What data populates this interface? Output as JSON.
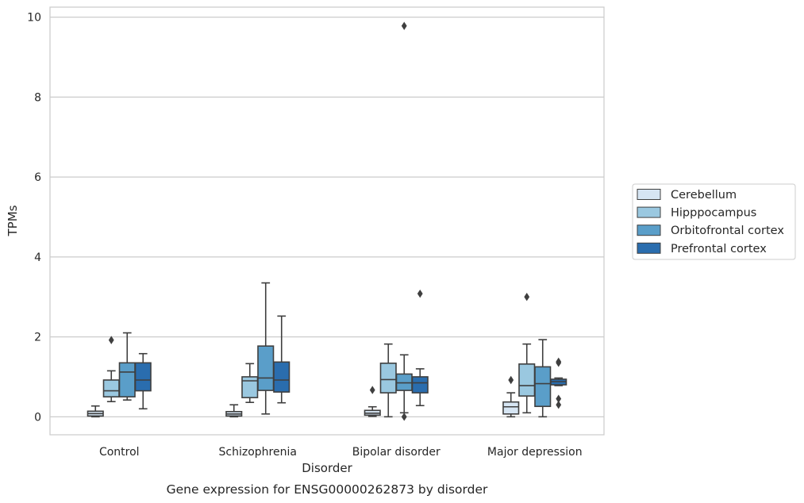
{
  "chart_data": {
    "type": "box",
    "ylabel": "TPMs",
    "xlabel": "Disorder",
    "caption": "Gene expression for ENSG00000262873 by disorder",
    "ylim": [
      -0.45,
      10.25
    ],
    "yticks": [
      0,
      2,
      4,
      6,
      8,
      10
    ],
    "grid": true,
    "legend_position": "right",
    "categories": [
      "Control",
      "Schizophrenia",
      "Bipolar disorder",
      "Major depression"
    ],
    "series": [
      {
        "name": "Cerebellum",
        "color": "#d6e5f3",
        "boxes": [
          {
            "whislo": 0.0,
            "q1": 0.02,
            "med": 0.08,
            "q3": 0.14,
            "whishi": 0.27,
            "fliers": []
          },
          {
            "whislo": 0.0,
            "q1": 0.02,
            "med": 0.07,
            "q3": 0.13,
            "whishi": 0.3,
            "fliers": []
          },
          {
            "whislo": 0.01,
            "q1": 0.04,
            "med": 0.09,
            "q3": 0.16,
            "whishi": 0.25,
            "fliers": [
              0.67
            ]
          },
          {
            "whislo": 0.0,
            "q1": 0.07,
            "med": 0.25,
            "q3": 0.37,
            "whishi": 0.6,
            "fliers": [
              0.92
            ]
          }
        ]
      },
      {
        "name": "Hipppocampus",
        "color": "#9ac8e0",
        "boxes": [
          {
            "whislo": 0.38,
            "q1": 0.5,
            "med": 0.65,
            "q3": 0.92,
            "whishi": 1.15,
            "fliers": [
              1.92
            ]
          },
          {
            "whislo": 0.36,
            "q1": 0.48,
            "med": 0.9,
            "q3": 1.0,
            "whishi": 1.33,
            "fliers": []
          },
          {
            "whislo": 0.0,
            "q1": 0.6,
            "med": 0.93,
            "q3": 1.34,
            "whishi": 1.82,
            "fliers": []
          },
          {
            "whislo": 0.1,
            "q1": 0.52,
            "med": 0.78,
            "q3": 1.32,
            "whishi": 1.82,
            "fliers": [
              3.0
            ]
          }
        ]
      },
      {
        "name": "Orbitofrontal cortex",
        "color": "#5a9ec9",
        "boxes": [
          {
            "whislo": 0.42,
            "q1": 0.5,
            "med": 1.12,
            "q3": 1.35,
            "whishi": 2.1,
            "fliers": []
          },
          {
            "whislo": 0.07,
            "q1": 0.66,
            "med": 0.97,
            "q3": 1.77,
            "whishi": 3.35,
            "fliers": []
          },
          {
            "whislo": 0.1,
            "q1": 0.66,
            "med": 0.85,
            "q3": 1.07,
            "whishi": 1.55,
            "fliers": [
              0.0,
              9.78
            ]
          },
          {
            "whislo": 0.0,
            "q1": 0.26,
            "med": 0.83,
            "q3": 1.25,
            "whishi": 1.93,
            "fliers": []
          }
        ]
      },
      {
        "name": "Prefrontal cortex",
        "color": "#2a6dae",
        "boxes": [
          {
            "whislo": 0.2,
            "q1": 0.65,
            "med": 0.92,
            "q3": 1.35,
            "whishi": 1.58,
            "fliers": []
          },
          {
            "whislo": 0.35,
            "q1": 0.62,
            "med": 0.92,
            "q3": 1.37,
            "whishi": 2.52,
            "fliers": []
          },
          {
            "whislo": 0.28,
            "q1": 0.6,
            "med": 0.85,
            "q3": 1.0,
            "whishi": 1.2,
            "fliers": [
              3.08
            ]
          },
          {
            "whislo": 0.78,
            "q1": 0.8,
            "med": 0.88,
            "q3": 0.94,
            "whishi": 0.97,
            "fliers": [
              0.3,
              0.45,
              1.35,
              1.38
            ]
          }
        ]
      }
    ]
  }
}
